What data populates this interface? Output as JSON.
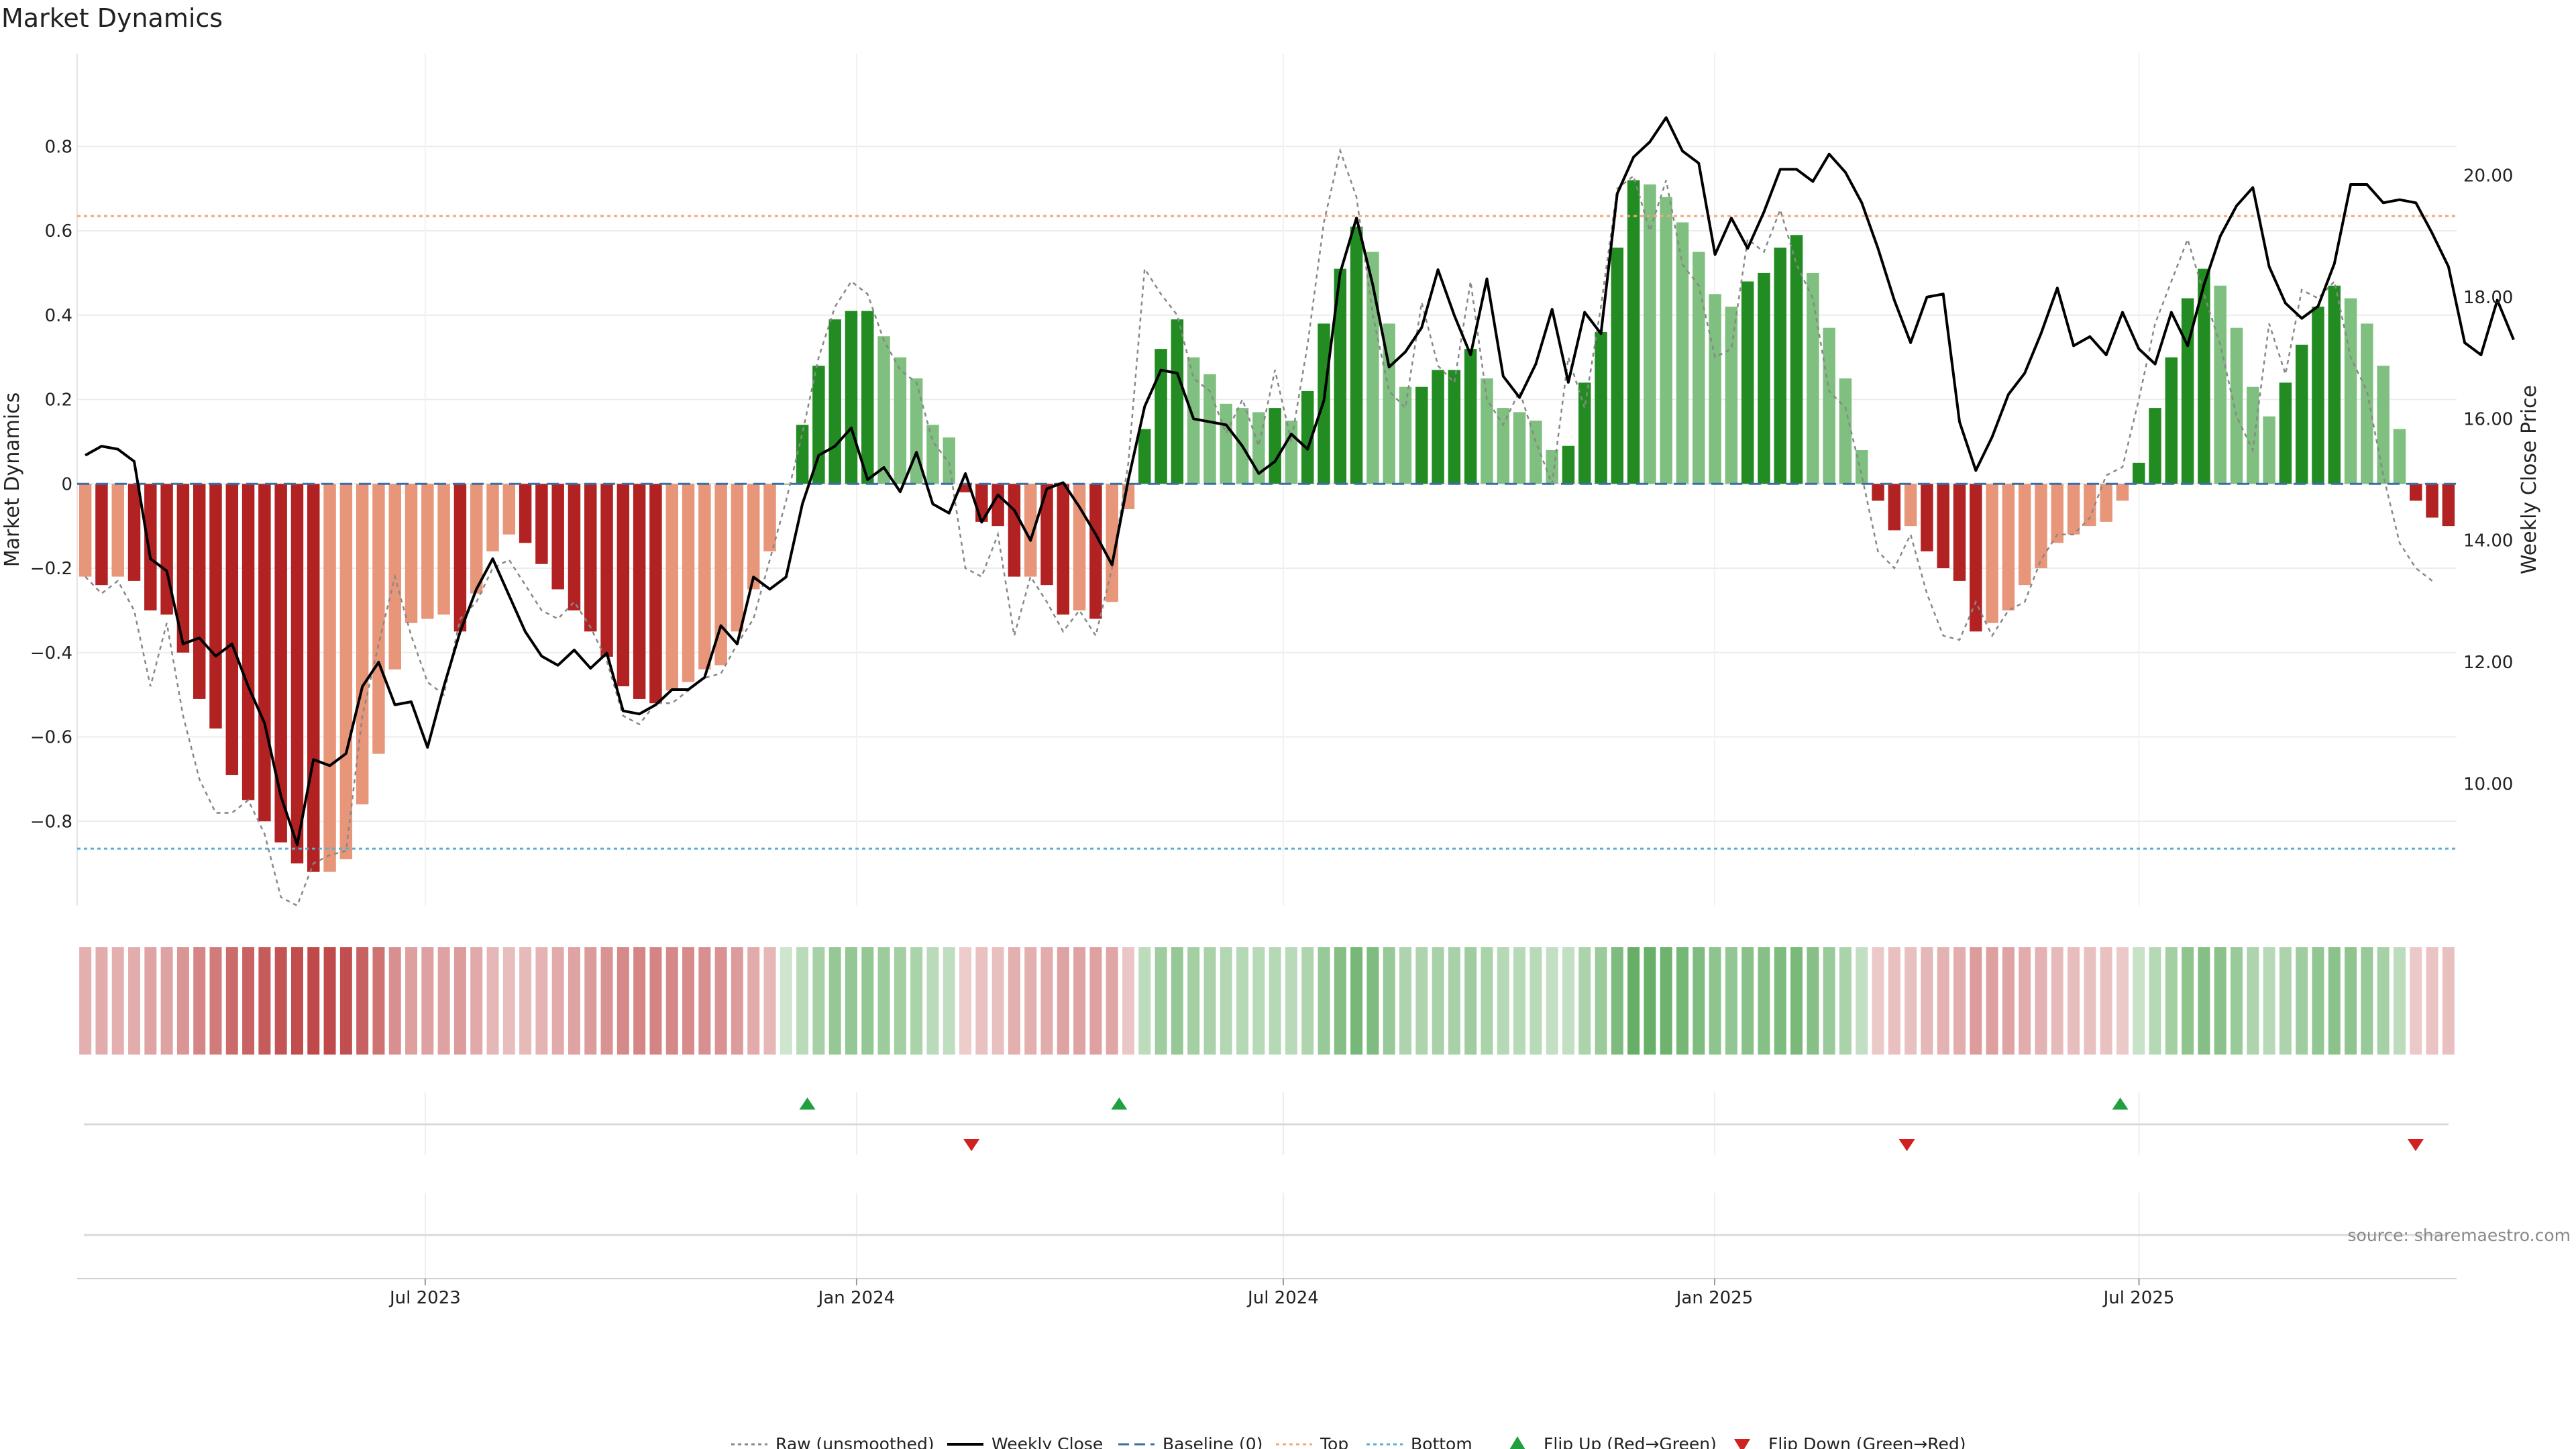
{
  "chart_data": {
    "type": "bar",
    "title": "Market Dynamics",
    "ylabel_left": "Market Dynamics",
    "ylabel_right": "Weekly Close Price",
    "source": "source: sharemaestro.com",
    "ylim_left": [
      -1.0,
      1.02
    ],
    "ylim_right": [
      8.0,
      22.0
    ],
    "yticks_left": [
      {
        "v": 0.8,
        "label": "0.8"
      },
      {
        "v": 0.6,
        "label": "0.6"
      },
      {
        "v": 0.4,
        "label": "0.4"
      },
      {
        "v": 0.2,
        "label": "0.2"
      },
      {
        "v": 0.0,
        "label": "0"
      },
      {
        "v": -0.2,
        "label": "−0.2"
      },
      {
        "v": -0.4,
        "label": "−0.4"
      },
      {
        "v": -0.6,
        "label": "−0.6"
      },
      {
        "v": -0.8,
        "label": "−0.8"
      }
    ],
    "yticks_right": [
      {
        "v": 20,
        "label": "20.00"
      },
      {
        "v": 18,
        "label": "18.00"
      },
      {
        "v": 16,
        "label": "16.00"
      },
      {
        "v": 14,
        "label": "14.00"
      },
      {
        "v": 12,
        "label": "12.00"
      },
      {
        "v": 10,
        "label": "10.00"
      }
    ],
    "x_start": "2023-02-06",
    "x_end": "2025-11-10",
    "xticks": [
      {
        "date": "2023-07-01",
        "label": "Jul 2023"
      },
      {
        "date": "2024-01-01",
        "label": "Jan 2024"
      },
      {
        "date": "2024-07-01",
        "label": "Jul 2024"
      },
      {
        "date": "2025-01-01",
        "label": "Jan 2025"
      },
      {
        "date": "2025-07-01",
        "label": "Jul 2025"
      }
    ],
    "top_line": 0.635,
    "bottom_line": -0.865,
    "baseline": 0,
    "dynamics": [
      -0.22,
      -0.24,
      -0.22,
      -0.23,
      -0.3,
      -0.31,
      -0.4,
      -0.51,
      -0.58,
      -0.69,
      -0.75,
      -0.8,
      -0.85,
      -0.9,
      -0.92,
      -0.92,
      -0.89,
      -0.76,
      -0.64,
      -0.44,
      -0.33,
      -0.32,
      -0.31,
      -0.35,
      -0.26,
      -0.16,
      -0.12,
      -0.14,
      -0.19,
      -0.25,
      -0.3,
      -0.35,
      -0.41,
      -0.48,
      -0.51,
      -0.52,
      -0.49,
      -0.47,
      -0.44,
      -0.43,
      -0.35,
      -0.25,
      -0.16,
      0.0,
      0.14,
      0.28,
      0.39,
      0.41,
      0.41,
      0.35,
      0.3,
      0.25,
      0.14,
      0.11,
      -0.02,
      -0.09,
      -0.1,
      -0.22,
      -0.22,
      -0.24,
      -0.31,
      -0.3,
      -0.32,
      -0.28,
      -0.06,
      0.13,
      0.32,
      0.39,
      0.3,
      0.26,
      0.19,
      0.18,
      0.17,
      0.18,
      0.15,
      0.22,
      0.38,
      0.51,
      0.61,
      0.55,
      0.38,
      0.23,
      0.23,
      0.27,
      0.27,
      0.32,
      0.25,
      0.18,
      0.17,
      0.15,
      0.08,
      0.09,
      0.24,
      0.36,
      0.56,
      0.72,
      0.71,
      0.68,
      0.62,
      0.55,
      0.45,
      0.42,
      0.48,
      0.5,
      0.56,
      0.59,
      0.5,
      0.37,
      0.25,
      0.08,
      -0.04,
      -0.11,
      -0.1,
      -0.16,
      -0.2,
      -0.23,
      -0.35,
      -0.33,
      -0.3,
      -0.24,
      -0.2,
      -0.14,
      -0.12,
      -0.1,
      -0.09,
      -0.04,
      0.05,
      0.18,
      0.3,
      0.44,
      0.51,
      0.47,
      0.37,
      0.23,
      0.16,
      0.24,
      0.33,
      0.42,
      0.47,
      0.44,
      0.38,
      0.28,
      0.13,
      -0.04,
      -0.08,
      -0.1
    ],
    "raw": [
      -0.22,
      -0.26,
      -0.23,
      -0.3,
      -0.48,
      -0.33,
      -0.55,
      -0.7,
      -0.78,
      -0.78,
      -0.75,
      -0.83,
      -0.98,
      -1.0,
      -0.9,
      -0.88,
      -0.87,
      -0.55,
      -0.38,
      -0.22,
      -0.36,
      -0.47,
      -0.5,
      -0.32,
      -0.28,
      -0.2,
      -0.18,
      -0.24,
      -0.3,
      -0.32,
      -0.28,
      -0.34,
      -0.42,
      -0.55,
      -0.57,
      -0.52,
      -0.52,
      -0.49,
      -0.46,
      -0.45,
      -0.38,
      -0.32,
      -0.18,
      -0.04,
      0.12,
      0.3,
      0.42,
      0.48,
      0.45,
      0.34,
      0.27,
      0.24,
      0.1,
      0.05,
      -0.2,
      -0.22,
      -0.12,
      -0.36,
      -0.22,
      -0.28,
      -0.35,
      -0.3,
      -0.36,
      -0.2,
      0.05,
      0.51,
      0.45,
      0.4,
      0.25,
      0.22,
      0.12,
      0.2,
      0.09,
      0.27,
      0.1,
      0.33,
      0.62,
      0.79,
      0.68,
      0.4,
      0.22,
      0.18,
      0.43,
      0.28,
      0.24,
      0.48,
      0.2,
      0.14,
      0.22,
      0.1,
      0.0,
      0.3,
      0.18,
      0.42,
      0.7,
      0.73,
      0.6,
      0.72,
      0.52,
      0.47,
      0.3,
      0.32,
      0.58,
      0.55,
      0.65,
      0.52,
      0.44,
      0.22,
      0.18,
      0.02,
      -0.16,
      -0.2,
      -0.12,
      -0.26,
      -0.36,
      -0.37,
      -0.28,
      -0.36,
      -0.3,
      -0.28,
      -0.18,
      -0.12,
      -0.12,
      -0.08,
      0.02,
      0.04,
      0.2,
      0.38,
      0.48,
      0.58,
      0.45,
      0.33,
      0.16,
      0.08,
      0.38,
      0.26,
      0.46,
      0.44,
      0.48,
      0.3,
      0.22,
      0.02,
      -0.14,
      -0.2,
      -0.23
    ],
    "weekly_close": [
      15.4,
      15.55,
      15.5,
      15.3,
      13.7,
      13.5,
      12.3,
      12.4,
      12.1,
      12.3,
      11.6,
      11.0,
      9.8,
      9.0,
      10.4,
      10.3,
      10.5,
      11.6,
      12.0,
      11.3,
      11.35,
      10.6,
      11.6,
      12.5,
      13.2,
      13.7,
      13.1,
      12.5,
      12.1,
      11.95,
      12.2,
      11.9,
      12.15,
      11.2,
      11.15,
      11.3,
      11.55,
      11.55,
      11.75,
      12.6,
      12.3,
      13.4,
      13.2,
      13.4,
      14.6,
      15.4,
      15.55,
      15.85,
      15.0,
      15.2,
      14.8,
      15.45,
      14.6,
      14.45,
      15.1,
      14.3,
      14.75,
      14.5,
      14.0,
      14.85,
      14.95,
      14.55,
      14.1,
      13.6,
      15.0,
      16.2,
      16.8,
      16.75,
      16.0,
      15.95,
      15.9,
      15.55,
      15.1,
      15.3,
      15.75,
      15.5,
      16.3,
      18.4,
      19.3,
      18.2,
      16.85,
      17.1,
      17.5,
      18.45,
      17.7,
      17.05,
      18.3,
      16.7,
      16.35,
      16.9,
      17.8,
      16.6,
      17.75,
      17.4,
      19.7,
      20.3,
      20.55,
      20.95,
      20.4,
      20.2,
      18.7,
      19.3,
      18.8,
      19.4,
      20.1,
      20.1,
      19.9,
      20.35,
      20.05,
      19.55,
      18.8,
      17.95,
      17.25,
      18.0,
      18.05,
      15.95,
      15.15,
      15.7,
      16.4,
      16.75,
      17.4,
      18.15,
      17.2,
      17.35,
      17.05,
      17.75,
      17.15,
      16.9,
      17.75,
      17.2,
      18.2,
      19.0,
      19.5,
      19.8,
      18.5,
      17.9,
      17.65,
      17.85,
      18.55,
      19.85,
      19.85,
      19.55,
      19.6,
      19.55,
      19.05,
      18.5,
      17.25,
      17.05,
      17.95,
      17.3
    ],
    "heat_strip": "per-bar tint of the Market Dynamics value (red negative, green positive)",
    "flip_up": [
      "2023-12-11",
      "2024-04-22",
      "2025-06-23"
    ],
    "flip_down": [
      "2024-02-19",
      "2025-03-24",
      "2025-10-27"
    ],
    "legend": [
      {
        "name": "Raw (unsmoothed)",
        "style": "dotted",
        "color": "#888888"
      },
      {
        "name": "Weekly Close",
        "style": "solid",
        "color": "#000000"
      },
      {
        "name": "Baseline (0)",
        "style": "dashed",
        "color": "#3a6ea5"
      },
      {
        "name": "Top",
        "style": "dotted",
        "color": "#f0a878"
      },
      {
        "name": "Bottom",
        "style": "dotted",
        "color": "#5aafcf"
      },
      {
        "name": "Flip Up (Red→Green)",
        "style": "marker-up",
        "color": "#22a040"
      },
      {
        "name": "Flip Down (Green→Red)",
        "style": "marker-down",
        "color": "#d02020"
      }
    ],
    "legend_position": "bottom-center",
    "colors": {
      "red_strong": "#b22222",
      "red_weak": "#e8967a",
      "green_strong": "#228b22",
      "green_weak": "#7fbf7f",
      "top": "#f0a878",
      "bottom": "#5aafcf",
      "baseline": "#3a6ea5",
      "raw": "#888888",
      "close": "#000000"
    }
  }
}
